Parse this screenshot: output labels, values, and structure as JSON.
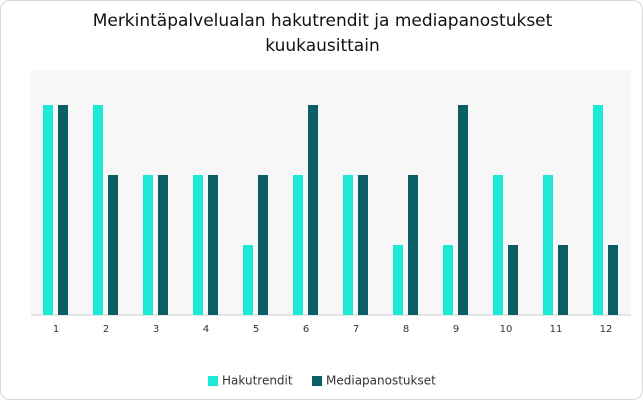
{
  "chart_data": {
    "type": "bar",
    "title": "Merkintäpalvelualan hakutrendit ja mediapanostukset kuukausittain",
    "categories": [
      "1",
      "2",
      "3",
      "4",
      "5",
      "6",
      "7",
      "8",
      "9",
      "10",
      "11",
      "12"
    ],
    "series": [
      {
        "name": "Hakutrendit",
        "color": "#1de9d6",
        "values": [
          3,
          3,
          2,
          2,
          1,
          2,
          2,
          1,
          1,
          2,
          2,
          3
        ]
      },
      {
        "name": "Mediapanostukset",
        "color": "#0b5e63",
        "values": [
          3,
          2,
          2,
          2,
          2,
          3,
          2,
          2,
          3,
          1,
          1,
          1
        ]
      }
    ],
    "ylim": [
      0,
      3.5
    ],
    "grid": false,
    "legend": "bottom"
  }
}
